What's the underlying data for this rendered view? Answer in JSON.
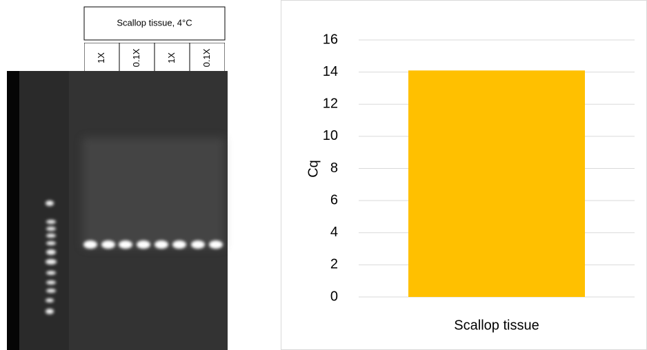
{
  "gel": {
    "header": "Scallop tissue, 4°C",
    "lanes": [
      "1X",
      "0.1X",
      "1X",
      "0.1X"
    ]
  },
  "chart_data": {
    "type": "bar",
    "categories": [
      "Scallop tissue"
    ],
    "values": [
      14.1
    ],
    "color": "#ffc000",
    "ylabel": "Cq",
    "ylim": [
      0,
      16
    ],
    "yticks": [
      0,
      2,
      4,
      6,
      8,
      10,
      12,
      14,
      16
    ],
    "grid": true
  }
}
